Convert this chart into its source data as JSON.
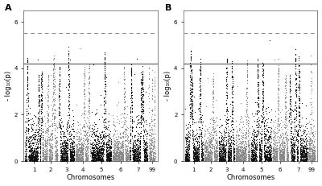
{
  "chromosomes": [
    1,
    2,
    3,
    4,
    5,
    6,
    7,
    99
  ],
  "chr_labels": [
    "1",
    "2",
    "3",
    "4",
    "5",
    "6",
    "7",
    "99"
  ],
  "suggestive_line": 5.5,
  "significance_line": 4.2,
  "ylim": [
    0,
    6.5
  ],
  "yticks": [
    0,
    2,
    4,
    6
  ],
  "ylabel": "- log₁₀(p)",
  "xlabel": "Chromosomes",
  "panel_A_label": "A",
  "panel_B_label": "B",
  "color_odd": "#111111",
  "color_even": "#888888",
  "background_color": "#ffffff",
  "sig_line_color": "#444444",
  "sug_line_color": "#888888",
  "point_size": 0.8,
  "seed_A": 42,
  "seed_B": 137,
  "n_snps_per_chr": [
    800,
    600,
    700,
    650,
    900,
    700,
    800,
    300
  ]
}
